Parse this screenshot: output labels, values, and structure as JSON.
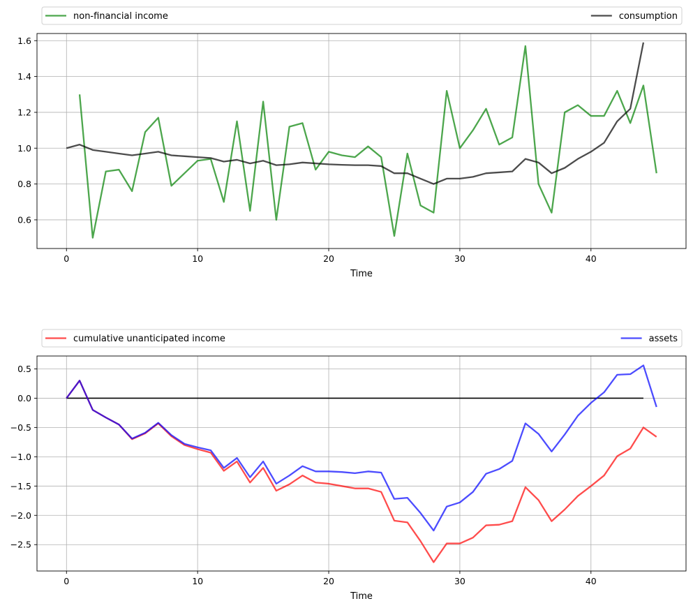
{
  "chart_data": [
    {
      "type": "line",
      "title": "",
      "xlabel": "Time",
      "ylabel": "",
      "xlim": [
        -2.25,
        47.25
      ],
      "ylim": [
        0.44,
        1.64
      ],
      "xticks": [
        0,
        10,
        20,
        30,
        40
      ],
      "yticks": [
        0.6,
        0.8,
        1.0,
        1.2,
        1.4,
        1.6
      ],
      "ytick_labels": [
        "0.6",
        "0.8",
        "1.0",
        "1.2",
        "1.4",
        "1.6"
      ],
      "grid": true,
      "legend": "top, above plot (expanded)",
      "series": [
        {
          "name": "non-financial income",
          "color": "#008000",
          "x_start": 1,
          "values": [
            1.3,
            0.5,
            0.87,
            0.88,
            0.76,
            1.09,
            1.17,
            0.79,
            0.86,
            0.93,
            0.94,
            0.7,
            1.15,
            0.65,
            1.26,
            0.6,
            1.12,
            1.14,
            0.88,
            0.98,
            0.96,
            0.95,
            1.01,
            0.95,
            0.51,
            0.97,
            0.68,
            0.64,
            1.32,
            1.0,
            1.1,
            1.22,
            1.02,
            1.06,
            1.57,
            0.8,
            0.64,
            1.2,
            1.24,
            1.18,
            1.18,
            1.32,
            1.14,
            1.35,
            0.86
          ]
        },
        {
          "name": "consumption",
          "color": "#000000",
          "x_start": 0,
          "values": [
            1.0,
            1.02,
            0.99,
            0.98,
            0.97,
            0.96,
            0.97,
            0.98,
            0.96,
            0.955,
            0.95,
            0.945,
            0.925,
            0.935,
            0.915,
            0.93,
            0.905,
            0.91,
            0.92,
            0.915,
            0.91,
            0.907,
            0.905,
            0.905,
            0.9,
            0.86,
            0.86,
            0.83,
            0.8,
            0.83,
            0.83,
            0.84,
            0.86,
            0.865,
            0.87,
            0.94,
            0.92,
            0.86,
            0.89,
            0.94,
            0.98,
            1.03,
            1.15,
            1.22,
            1.59
          ]
        }
      ]
    },
    {
      "type": "line",
      "title": "",
      "xlabel": "Time",
      "ylabel": "",
      "xlim": [
        -2.25,
        47.25
      ],
      "ylim": [
        -2.95,
        0.72
      ],
      "xticks": [
        0,
        10,
        20,
        30,
        40
      ],
      "yticks": [
        -2.5,
        -2.0,
        -1.5,
        -1.0,
        -0.5,
        0.0,
        0.5
      ],
      "ytick_labels": [
        "−2.5",
        "−2.0",
        "−1.5",
        "−1.0",
        "−0.5",
        "0.0",
        "0.5"
      ],
      "grid": true,
      "legend": "top, above plot (expanded)",
      "zero_line": {
        "from": 0,
        "to": 44,
        "value": 0,
        "color": "#000000"
      },
      "series": [
        {
          "name": "cumulative unanticipated income",
          "color": "#ff0000",
          "x_start": 0,
          "values": [
            0.0,
            0.3,
            -0.2,
            -0.33,
            -0.45,
            -0.7,
            -0.6,
            -0.43,
            -0.65,
            -0.8,
            -0.87,
            -0.93,
            -1.24,
            -1.08,
            -1.44,
            -1.19,
            -1.58,
            -1.47,
            -1.32,
            -1.44,
            -1.46,
            -1.5,
            -1.54,
            -1.54,
            -1.6,
            -2.09,
            -2.12,
            -2.44,
            -2.8,
            -2.48,
            -2.48,
            -2.38,
            -2.17,
            -2.16,
            -2.1,
            -1.52,
            -1.74,
            -2.1,
            -1.9,
            -1.67,
            -1.5,
            -1.32,
            -0.99,
            -0.86,
            -0.5,
            -0.66
          ]
        },
        {
          "name": "assets",
          "color": "#0000ff",
          "x_start": 0,
          "values": [
            0.0,
            0.3,
            -0.2,
            -0.33,
            -0.45,
            -0.69,
            -0.59,
            -0.42,
            -0.63,
            -0.78,
            -0.84,
            -0.89,
            -1.19,
            -1.02,
            -1.35,
            -1.08,
            -1.46,
            -1.32,
            -1.16,
            -1.25,
            -1.25,
            -1.26,
            -1.28,
            -1.25,
            -1.27,
            -1.72,
            -1.7,
            -1.96,
            -2.26,
            -1.85,
            -1.78,
            -1.6,
            -1.29,
            -1.21,
            -1.07,
            -0.43,
            -0.61,
            -0.91,
            -0.62,
            -0.3,
            -0.08,
            0.1,
            0.4,
            0.41,
            0.56,
            -0.15
          ]
        }
      ]
    }
  ]
}
